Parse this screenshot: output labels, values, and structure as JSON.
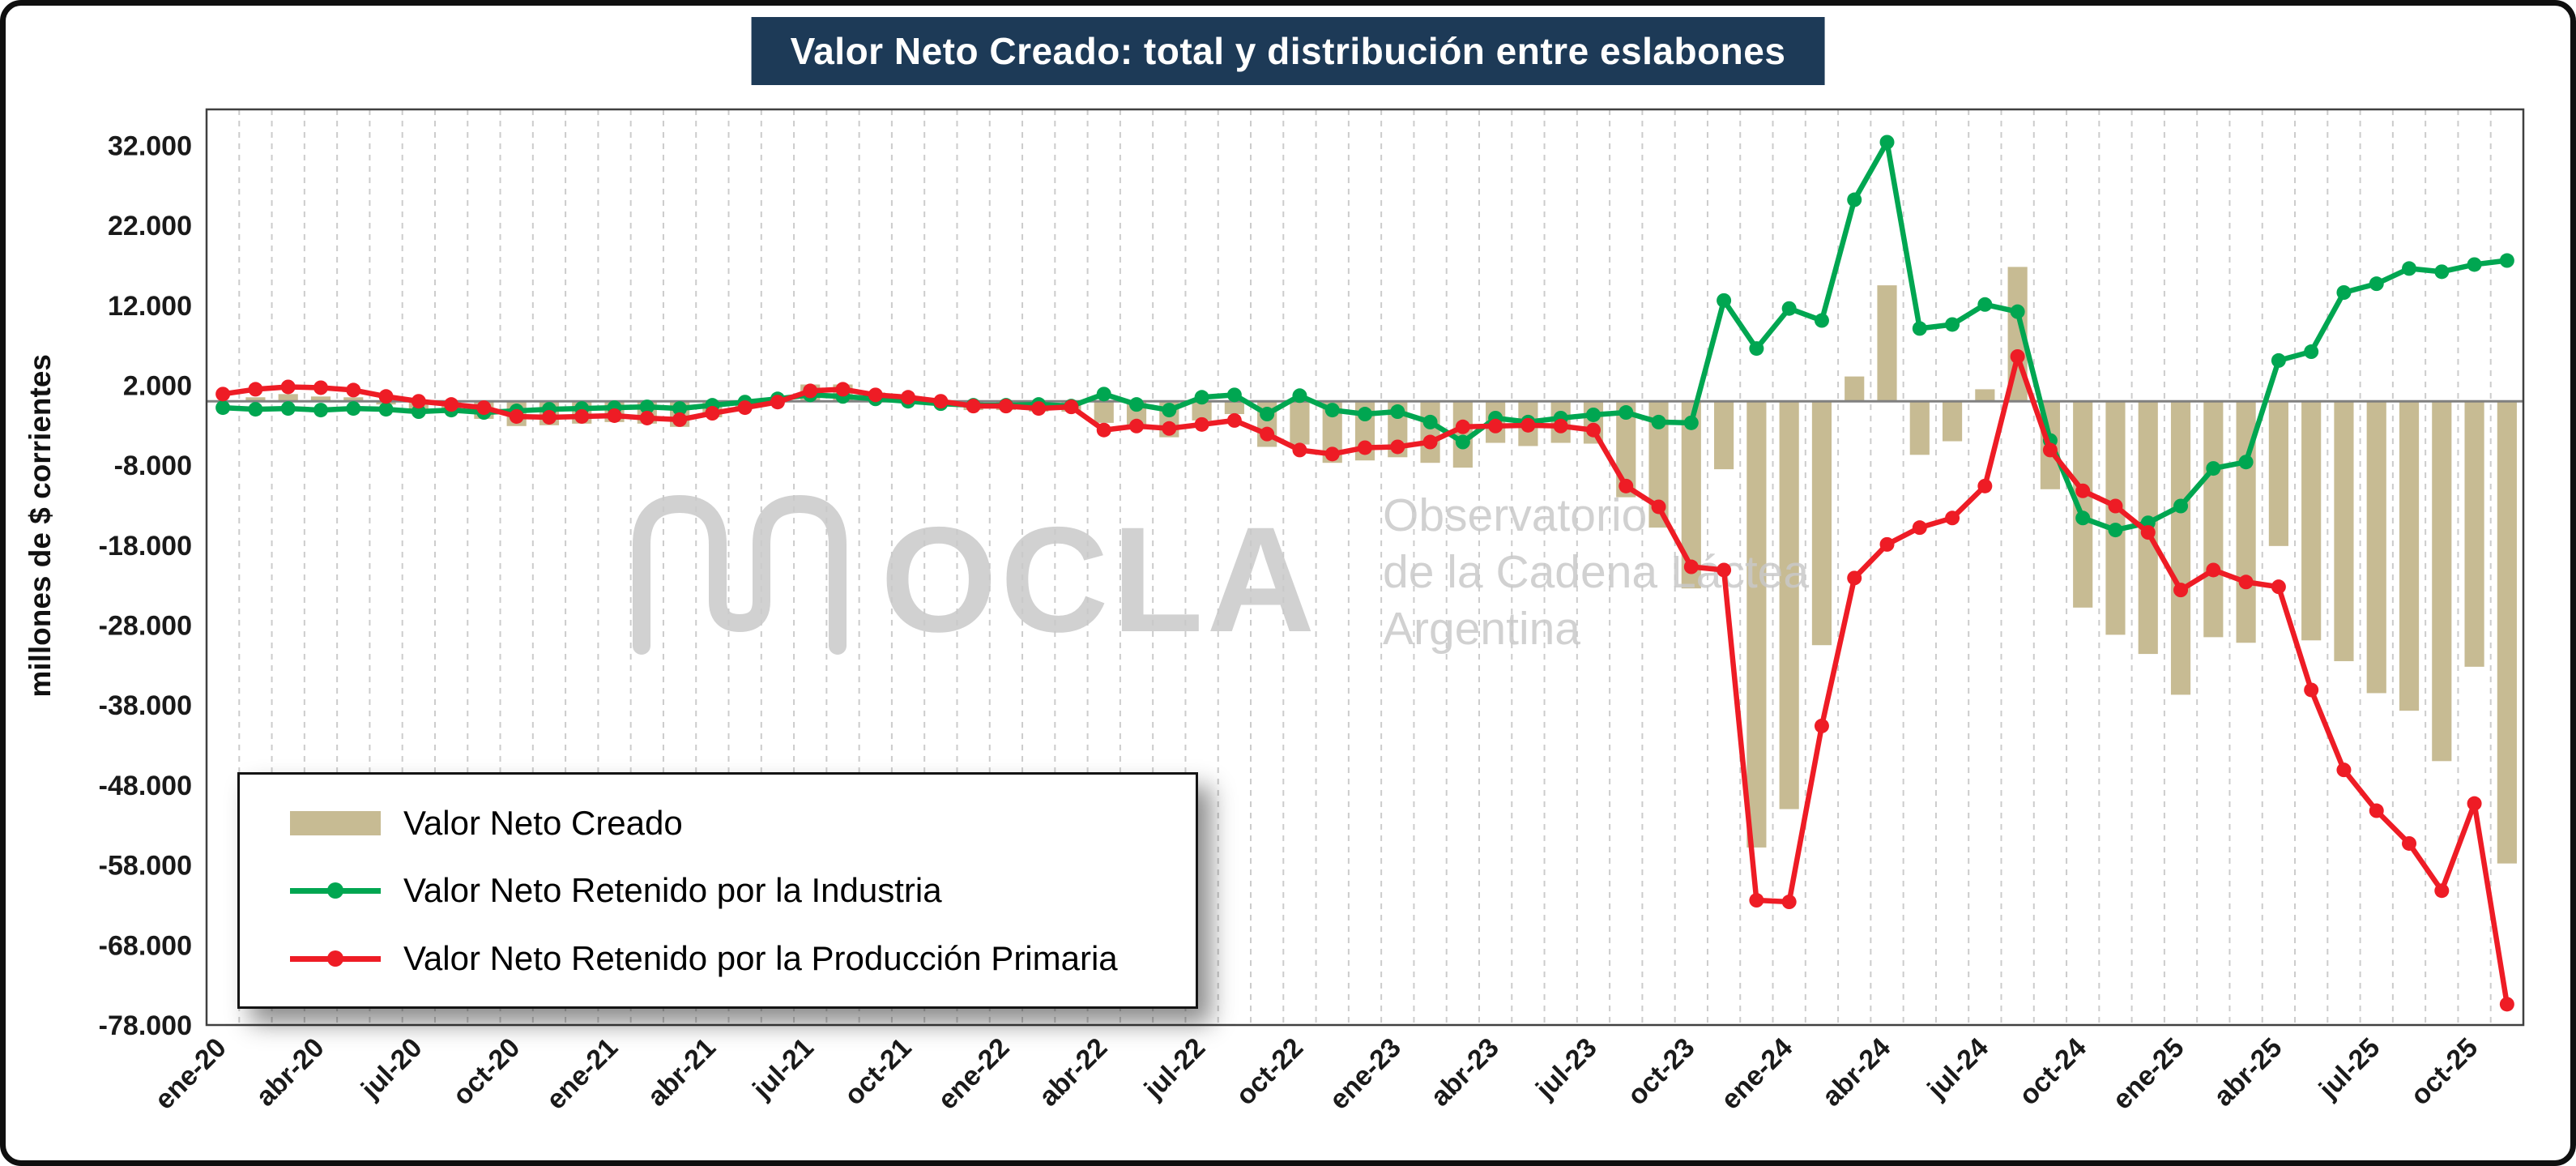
{
  "title": {
    "text": "Valor Neto Creado: total y distribución entre eslabones",
    "bg": "#1d3a57",
    "color": "#ffffff"
  },
  "y_axis": {
    "title": "millones de $ corrientes"
  },
  "watermark": {
    "main": "OCLA",
    "line1": "Observatorio",
    "line2": "de la Cadena Láctea",
    "line3": "Argentina"
  },
  "legend": {
    "items": [
      {
        "label": "Valor Neto Creado",
        "type": "bar",
        "color": "#c7bb93"
      },
      {
        "label": "Valor Neto Retenido por la Industria",
        "type": "line",
        "color": "#00a651"
      },
      {
        "label": "Valor Neto Retenido por la Producción Primaria",
        "type": "line",
        "color": "#ee1c25"
      }
    ]
  },
  "chart_data": {
    "type": "bar",
    "subtype": "combo-bar-and-lines",
    "title": "Valor Neto Creado: total y distribución entre eslabones",
    "ylabel": "millones de $ corrientes",
    "xlabel": "",
    "grid": "vertical-dashed",
    "legend_position": "inside-bottom-left",
    "ylim": [
      -78000,
      36500
    ],
    "y_ticks": [
      32000,
      22000,
      12000,
      2000,
      -8000,
      -18000,
      -28000,
      -38000,
      -48000,
      -58000,
      -68000,
      -78000
    ],
    "y_tick_labels": [
      "32.000",
      "22.000",
      "12.000",
      "2.000",
      "-8.000",
      "-18.000",
      "-28.000",
      "-38.000",
      "-48.000",
      "-58.000",
      "-68.000",
      "-78.000"
    ],
    "x_tick_step": 3,
    "categories": [
      "ene-20",
      "feb-20",
      "mar-20",
      "abr-20",
      "may-20",
      "jun-20",
      "jul-20",
      "ago-20",
      "sep-20",
      "oct-20",
      "nov-20",
      "dic-20",
      "ene-21",
      "feb-21",
      "mar-21",
      "abr-21",
      "may-21",
      "jun-21",
      "jul-21",
      "ago-21",
      "sep-21",
      "oct-21",
      "nov-21",
      "dic-21",
      "ene-22",
      "feb-22",
      "mar-22",
      "abr-22",
      "may-22",
      "jun-22",
      "jul-22",
      "ago-22",
      "sep-22",
      "oct-22",
      "nov-22",
      "dic-22",
      "ene-23",
      "feb-23",
      "mar-23",
      "abr-23",
      "may-23",
      "jun-23",
      "jul-23",
      "ago-23",
      "sep-23",
      "oct-23",
      "nov-23",
      "dic-23",
      "ene-24",
      "feb-24",
      "mar-24",
      "abr-24",
      "may-24",
      "jun-24",
      "jul-24",
      "ago-24",
      "sep-24",
      "oct-24",
      "nov-24",
      "dic-24",
      "ene-25",
      "feb-25",
      "mar-25",
      "abr-25",
      "may-25",
      "jun-25",
      "jul-25",
      "ago-25",
      "sep-25",
      "oct-25",
      "nov-25"
    ],
    "series": [
      {
        "name": "Valor Neto Creado",
        "type": "bar",
        "color": "#c7bb93",
        "values": [
          100,
          500,
          900,
          600,
          500,
          -400,
          -1300,
          -1500,
          -2200,
          -3100,
          -3000,
          -2800,
          -2600,
          -2800,
          -3200,
          -2000,
          -900,
          200,
          2100,
          2100,
          1100,
          500,
          -300,
          -1100,
          -1100,
          -1300,
          -1300,
          -2700,
          -3500,
          -4500,
          -2400,
          -1600,
          -5700,
          -5400,
          -7700,
          -7400,
          -7000,
          -7700,
          -8300,
          -5200,
          -5600,
          -5200,
          -5300,
          -12000,
          -15800,
          -23400,
          -8500,
          -55800,
          -51000,
          -30500,
          3100,
          14500,
          -6700,
          -5000,
          1500,
          16800,
          -11000,
          -25800,
          -29200,
          -31600,
          -36700,
          -29500,
          -30200,
          -18100,
          -29900,
          -32500,
          -36500,
          -38700,
          -45000,
          -33200,
          -57800
        ]
      },
      {
        "name": "Valor Neto Retenido por la Industria",
        "type": "line",
        "color": "#00a651",
        "values": [
          -800,
          -1000,
          -900,
          -1100,
          -900,
          -1000,
          -1300,
          -1100,
          -1400,
          -1200,
          -1000,
          -900,
          -800,
          -700,
          -900,
          -500,
          -100,
          300,
          800,
          600,
          300,
          0,
          -300,
          -500,
          -500,
          -400,
          -600,
          900,
          -400,
          -1100,
          500,
          800,
          -1600,
          700,
          -1100,
          -1600,
          -1300,
          -2600,
          -5100,
          -2100,
          -2600,
          -2100,
          -1700,
          -1400,
          -2600,
          -2700,
          12600,
          6600,
          11600,
          10100,
          25200,
          32400,
          9100,
          9600,
          12100,
          11200,
          -4900,
          -14600,
          -16100,
          -15200,
          -13100,
          -8400,
          -7600,
          5100,
          6200,
          13600,
          14700,
          16600,
          16200,
          17100,
          17600
        ]
      },
      {
        "name": "Valor Neto Retenido por la Producción Primaria",
        "type": "line",
        "color": "#ee1c25",
        "values": [
          900,
          1500,
          1800,
          1700,
          1400,
          600,
          0,
          -400,
          -800,
          -1900,
          -2000,
          -1900,
          -1800,
          -2100,
          -2300,
          -1500,
          -800,
          -100,
          1300,
          1500,
          800,
          500,
          0,
          -600,
          -600,
          -900,
          -700,
          -3600,
          -3100,
          -3400,
          -2900,
          -2400,
          -4100,
          -6100,
          -6600,
          -5800,
          -5700,
          -5100,
          -3200,
          -3100,
          -3000,
          -3100,
          -3600,
          -10600,
          -13200,
          -20700,
          -21100,
          -62400,
          -62600,
          -40600,
          -22100,
          -17900,
          -15800,
          -14600,
          -10600,
          5600,
          -6100,
          -11200,
          -13100,
          -16400,
          -23600,
          -21100,
          -22600,
          -23200,
          -36100,
          -46100,
          -51200,
          -55300,
          -61200,
          -50300,
          -75400
        ]
      }
    ]
  }
}
